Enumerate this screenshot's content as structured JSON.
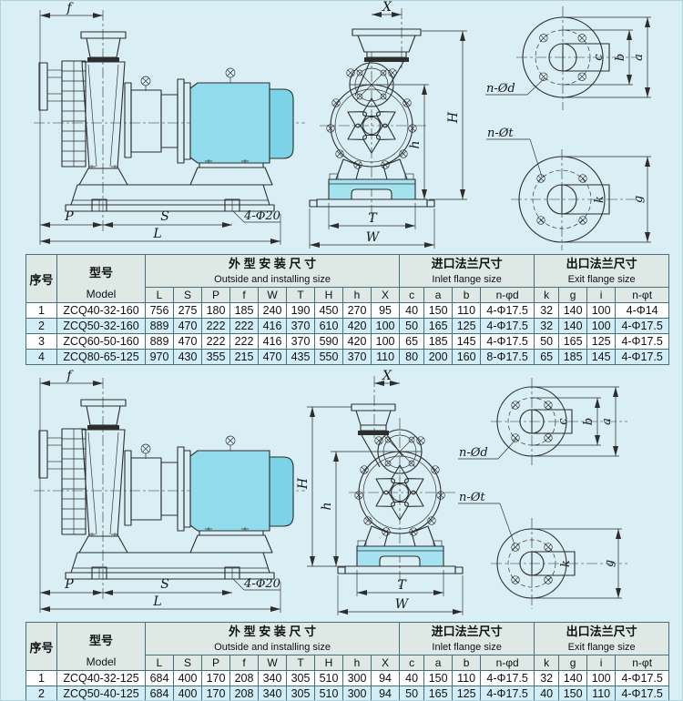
{
  "page": {
    "background": "#d9eef5",
    "motor_cyan": "#90dcec",
    "base_cyan": "#a5e2ef",
    "table_border": "#47707c",
    "header_bg": "#dee9e5",
    "row_alt_bg": "#d2edf6"
  },
  "drawing": {
    "labels": {
      "f": "f",
      "P": "P",
      "S": "S",
      "L": "L",
      "bolt_note": "4-Φ20",
      "X": "X",
      "H": "H",
      "h": "h",
      "T": "T",
      "W": "W",
      "inlet_bolts": "n-Ød",
      "outlet_bolts": "n-Øt",
      "c": "c",
      "b": "b",
      "a": "a",
      "k": "k",
      "g": "g"
    }
  },
  "table1": {
    "headers": {
      "index": "序号",
      "model_cn": "型号",
      "model_en": "Model",
      "outside_cn": "外 型 安 装 尺 寸",
      "outside_en": "Outside and installing size",
      "inlet_cn": "进口法兰尺寸",
      "inlet_en": "Inlet flange size",
      "exit_cn": "出口法兰尺寸",
      "exit_en": "Exit flange size"
    },
    "dim_letters": [
      "L",
      "S",
      "P",
      "f",
      "W",
      "T",
      "H",
      "h",
      "X",
      "c",
      "a",
      "b",
      "n-φd",
      "k",
      "g",
      "i",
      "n-φt"
    ],
    "rows": [
      [
        "1",
        "ZCQ40-32-160",
        "756",
        "275",
        "180",
        "185",
        "240",
        "190",
        "450",
        "270",
        "95",
        "40",
        "150",
        "110",
        "4-Φ17.5",
        "32",
        "140",
        "100",
        "4-Φ14"
      ],
      [
        "2",
        "ZCQ50-32-160",
        "889",
        "470",
        "222",
        "222",
        "416",
        "370",
        "610",
        "420",
        "100",
        "50",
        "165",
        "125",
        "4-Φ17.5",
        "32",
        "140",
        "100",
        "4-Φ17.5"
      ],
      [
        "3",
        "ZCQ60-50-160",
        "889",
        "470",
        "222",
        "222",
        "416",
        "370",
        "590",
        "420",
        "100",
        "65",
        "185",
        "145",
        "4-Φ17.5",
        "50",
        "165",
        "125",
        "4-Φ17.5"
      ],
      [
        "4",
        "ZCQ80-65-125",
        "970",
        "430",
        "355",
        "215",
        "470",
        "435",
        "550",
        "370",
        "110",
        "80",
        "200",
        "160",
        "8-Φ17.5",
        "65",
        "185",
        "145",
        "4-Φ17.5"
      ]
    ]
  },
  "table2": {
    "headers": {
      "index": "序号",
      "model_cn": "型号",
      "model_en": "Model",
      "outside_cn": "外 型 安 装 尺 寸",
      "outside_en": "Outside and installing size",
      "inlet_cn": "进口法兰尺寸",
      "inlet_en": "Inlet flange size",
      "exit_cn": "出口法兰尺寸",
      "exit_en": "Exit flange size"
    },
    "dim_letters": [
      "L",
      "S",
      "P",
      "f",
      "W",
      "T",
      "H",
      "h",
      "X",
      "c",
      "a",
      "b",
      "n-φd",
      "k",
      "g",
      "i",
      "n-φt"
    ],
    "rows": [
      [
        "1",
        "ZCQ40-32-125",
        "684",
        "400",
        "170",
        "208",
        "340",
        "305",
        "510",
        "300",
        "94",
        "40",
        "150",
        "110",
        "4-Φ17.5",
        "32",
        "140",
        "100",
        "4-Φ17.5"
      ],
      [
        "2",
        "ZCQ50-40-125",
        "684",
        "400",
        "170",
        "208",
        "340",
        "305",
        "510",
        "300",
        "94",
        "50",
        "165",
        "125",
        "4-Φ17.5",
        "40",
        "150",
        "110",
        "4-Φ17.5"
      ]
    ]
  }
}
